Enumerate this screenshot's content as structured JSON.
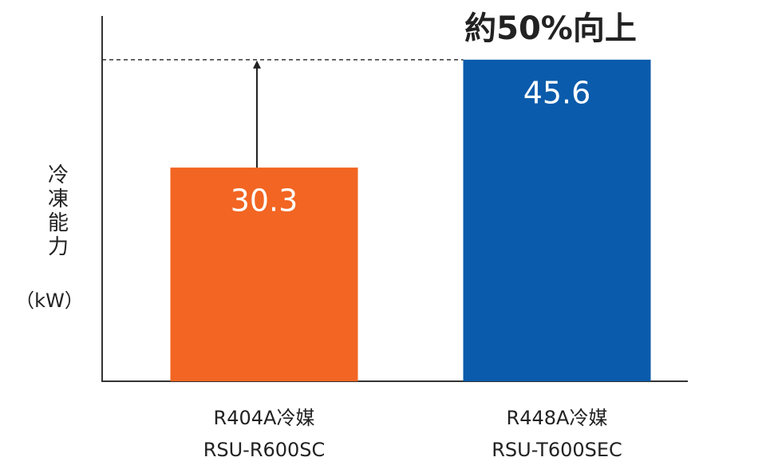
{
  "chart_data": {
    "type": "bar",
    "annotation": "約50%向上",
    "ylabel": "冷凍能力",
    "yunit": "（kW）",
    "categories": [
      [
        "R404A冷媒",
        "RSU-R600SC"
      ],
      [
        "R448A冷媒",
        "RSU-T600SEC"
      ]
    ],
    "values": [
      30.3,
      45.6
    ],
    "colors": [
      "#f26522",
      "#0a5bab"
    ],
    "annotation_color": "#c8102e",
    "ylim": [
      0,
      51.8
    ]
  }
}
